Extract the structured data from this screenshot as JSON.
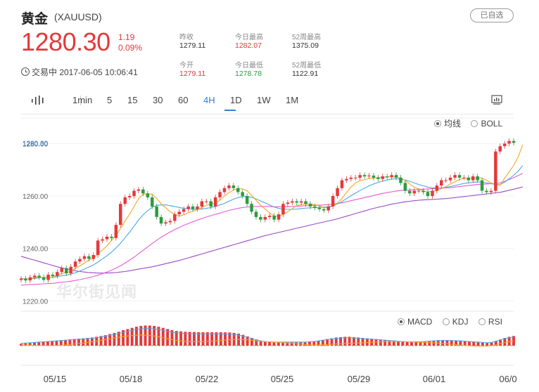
{
  "header": {
    "title": "黄金",
    "symbol": "(XAUUSD)",
    "watch_label": "已自选",
    "price": "1280.30",
    "change": "1.19",
    "change_pct": "0.09%",
    "trade_status": "交易中 2017-06-05 10:06:41"
  },
  "stats": {
    "prev_close_label": "昨收",
    "prev_close": "1279.11",
    "open_label": "今开",
    "open": "1279.11",
    "high_label": "今日最高",
    "high": "1282.07",
    "low_label": "今日最低",
    "low": "1278.78",
    "w52_high_label": "52周最高",
    "w52_high": "1375.09",
    "w52_low_label": "52周最低",
    "w52_low": "1122.91"
  },
  "toolbar": {
    "timeframes": [
      "1min",
      "5",
      "15",
      "30",
      "60",
      "4H",
      "1D",
      "1W",
      "1M"
    ],
    "active": "4H"
  },
  "overlay_options": {
    "ma_label": "均线",
    "boll_label": "BOLL"
  },
  "indicator_options": {
    "macd_label": "MACD",
    "kdj_label": "KDJ",
    "rsi_label": "RSI"
  },
  "watermark": "华尔街见闻",
  "colors": {
    "up": "#e4393c",
    "down": "#2c9c3f",
    "accent": "#2f7fd8",
    "ma_short": "#f5a623",
    "ma_mid": "#48a9e6",
    "ma_long": "#e85ad4",
    "ma_xlong": "#9b48c9"
  },
  "chart_data": {
    "type": "candlestick",
    "current_price_label": "1280.30",
    "current_price": 1280.3,
    "y_ticks": [
      "1220.00",
      "1240.00",
      "1260.00",
      "1280.00"
    ],
    "ylim": [
      1219,
      1286
    ],
    "x_ticks": [
      "05/15",
      "05/18",
      "05/22",
      "05/25",
      "05/29",
      "06/01",
      "06/0"
    ],
    "close": [
      1228.5,
      1227.8,
      1229,
      1229.6,
      1229,
      1228,
      1230,
      1229.5,
      1231,
      1232.5,
      1230.5,
      1233,
      1235,
      1236,
      1237,
      1236,
      1237.5,
      1243,
      1243.5,
      1244.5,
      1244,
      1249,
      1257,
      1259.5,
      1260,
      1262,
      1262.5,
      1261,
      1259.5,
      1256,
      1252,
      1249.5,
      1250,
      1250.5,
      1253,
      1254,
      1255,
      1256,
      1255,
      1256,
      1258,
      1258,
      1256,
      1259.5,
      1261.5,
      1263,
      1264,
      1263,
      1261.5,
      1260,
      1257,
      1254,
      1252,
      1251,
      1252,
      1252.5,
      1251,
      1253,
      1257,
      1257.5,
      1258,
      1257.5,
      1258,
      1257,
      1256,
      1255.5,
      1255,
      1254.5,
      1256,
      1260,
      1263,
      1266,
      1266.5,
      1267,
      1267,
      1268,
      1267.5,
      1267.8,
      1267,
      1266.5,
      1267.5,
      1267.2,
      1268,
      1267,
      1265,
      1262,
      1261,
      1262,
      1262,
      1261.5,
      1260,
      1262,
      1264,
      1266,
      1266,
      1267,
      1268,
      1267,
      1267,
      1266,
      1267.5,
      1266,
      1262,
      1261.5,
      1262,
      1277,
      1279,
      1280,
      1281,
      1280.3
    ],
    "ma_short": [
      1228.5,
      1228.3,
      1228.5,
      1228.9,
      1229.1,
      1228.8,
      1229,
      1229.1,
      1229.7,
      1230.5,
      1230.8,
      1231.3,
      1232.4,
      1233.3,
      1234.4,
      1235.6,
      1236.3,
      1237.9,
      1239.4,
      1241,
      1243,
      1245,
      1247.6,
      1250.5,
      1253,
      1256,
      1259,
      1260.7,
      1260.9,
      1260.7,
      1259,
      1257,
      1255.5,
      1254,
      1253,
      1252.4,
      1252.8,
      1253.6,
      1254.2,
      1254.8,
      1255.6,
      1256.5,
      1256.8,
      1257.3,
      1258.4,
      1260,
      1261.3,
      1262.3,
      1262.8,
      1262.7,
      1262,
      1260.3,
      1258.4,
      1256.5,
      1255,
      1253.6,
      1252.4,
      1252.2,
      1253,
      1254,
      1255.2,
      1256.3,
      1256.8,
      1256.9,
      1257,
      1256.7,
      1256.3,
      1255.6,
      1255.6,
      1256.2,
      1257.3,
      1259.1,
      1261.3,
      1263.4,
      1265,
      1265.9,
      1266.2,
      1266.7,
      1266.8,
      1267.1,
      1267.1,
      1267.2,
      1267.4,
      1267.2,
      1266.9,
      1265.9,
      1264.6,
      1263.4,
      1262.6,
      1262,
      1261.6,
      1261.8,
      1262,
      1262.8,
      1263.6,
      1264.6,
      1265.4,
      1266.2,
      1266.8,
      1266.8,
      1266.8,
      1266.9,
      1266.8,
      1266,
      1265,
      1264.3,
      1264.1,
      1266.9,
      1269.2,
      1271.7,
      1274.9,
      1279.5
    ],
    "ma_mid": [
      1228.5,
      1228.4,
      1228.4,
      1228.6,
      1228.8,
      1228.9,
      1229,
      1229,
      1229.3,
      1229.6,
      1229.8,
      1230.2,
      1230.7,
      1231.4,
      1232.1,
      1232.9,
      1233.7,
      1234.8,
      1236,
      1237.2,
      1238.6,
      1240.2,
      1242,
      1244.1,
      1246.2,
      1248.5,
      1250.9,
      1252.8,
      1254.4,
      1255.7,
      1256.4,
      1256.6,
      1256.6,
      1256.3,
      1256,
      1255.6,
      1255.3,
      1255.1,
      1254.9,
      1254.9,
      1255,
      1255.3,
      1255.6,
      1256,
      1256.6,
      1257.2,
      1258,
      1258.8,
      1259.4,
      1259.8,
      1259.8,
      1259.5,
      1258.9,
      1258.1,
      1257.4,
      1256.6,
      1255.8,
      1255.3,
      1255,
      1254.9,
      1254.9,
      1255,
      1255.2,
      1255.4,
      1255.5,
      1255.6,
      1255.7,
      1255.7,
      1255.9,
      1256.3,
      1257,
      1257.9,
      1259,
      1260.1,
      1261.1,
      1262.1,
      1263,
      1263.9,
      1264.6,
      1265.2,
      1265.7,
      1266.1,
      1266.5,
      1266.6,
      1266.5,
      1266.1,
      1265.6,
      1265,
      1264.4,
      1263.9,
      1263.4,
      1263.1,
      1263,
      1263.1,
      1263.3,
      1263.6,
      1264,
      1264.4,
      1264.8,
      1265,
      1265.2,
      1265.4,
      1265.3,
      1265,
      1264.7,
      1264.4,
      1264.3,
      1265.3,
      1266.6,
      1267.9,
      1269.5,
      1271.6
    ],
    "ma_long": [
      1226,
      1226.1,
      1226.2,
      1226.3,
      1226.4,
      1226.5,
      1226.6,
      1226.7,
      1226.9,
      1227.1,
      1227.3,
      1227.5,
      1227.8,
      1228.1,
      1228.5,
      1228.9,
      1229.3,
      1229.8,
      1230.4,
      1231,
      1231.7,
      1232.5,
      1233.4,
      1234.4,
      1235.5,
      1236.7,
      1238,
      1239.3,
      1240.6,
      1241.9,
      1243.1,
      1244.3,
      1245.3,
      1246.3,
      1247.2,
      1248,
      1248.8,
      1249.5,
      1250.2,
      1250.8,
      1251.4,
      1252,
      1252.5,
      1253,
      1253.5,
      1254,
      1254.5,
      1254.9,
      1255.3,
      1255.6,
      1255.8,
      1255.9,
      1256,
      1256,
      1256,
      1256,
      1255.9,
      1255.9,
      1255.9,
      1255.9,
      1256,
      1256.1,
      1256.2,
      1256.3,
      1256.4,
      1256.4,
      1256.5,
      1256.6,
      1256.7,
      1256.9,
      1257.1,
      1257.4,
      1257.8,
      1258.2,
      1258.6,
      1259,
      1259.4,
      1259.8,
      1260.2,
      1260.6,
      1261,
      1261.3,
      1261.6,
      1261.9,
      1262.1,
      1262.2,
      1262.3,
      1262.4,
      1262.5,
      1262.6,
      1262.7,
      1262.8,
      1262.9,
      1263,
      1263.1,
      1263.2,
      1263.4,
      1263.6,
      1263.8,
      1264,
      1264.2,
      1264.4,
      1264.5,
      1264.6,
      1264.7,
      1264.8,
      1265,
      1265.6,
      1266.3,
      1267,
      1267.8,
      1268.6
    ],
    "ma_xlong": [
      1237,
      1236.5,
      1236,
      1235.5,
      1235,
      1234.5,
      1234,
      1233.5,
      1233,
      1232.6,
      1232.2,
      1231.8,
      1231.5,
      1231.2,
      1231,
      1230.8,
      1230.7,
      1230.6,
      1230.6,
      1230.6,
      1230.7,
      1230.8,
      1231,
      1231.2,
      1231.5,
      1231.8,
      1232.1,
      1232.4,
      1232.7,
      1233,
      1233.4,
      1233.8,
      1234.2,
      1234.6,
      1235,
      1235.4,
      1235.9,
      1236.4,
      1236.9,
      1237.4,
      1237.9,
      1238.4,
      1238.9,
      1239.4,
      1239.9,
      1240.4,
      1240.9,
      1241.4,
      1241.9,
      1242.4,
      1242.9,
      1243.4,
      1243.9,
      1244.4,
      1244.9,
      1245.3,
      1245.7,
      1246.1,
      1246.5,
      1246.9,
      1247.3,
      1247.7,
      1248.1,
      1248.5,
      1248.9,
      1249.3,
      1249.7,
      1250.1,
      1250.5,
      1250.9,
      1251.3,
      1251.8,
      1252.3,
      1252.8,
      1253.3,
      1253.8,
      1254.3,
      1254.8,
      1255.3,
      1255.7,
      1256.1,
      1256.5,
      1256.9,
      1257.2,
      1257.5,
      1257.8,
      1258,
      1258.2,
      1258.4,
      1258.5,
      1258.6,
      1258.7,
      1258.8,
      1258.9,
      1259,
      1259.2,
      1259.4,
      1259.6,
      1259.8,
      1260,
      1260.2,
      1260.4,
      1260.6,
      1260.8,
      1261,
      1261.2,
      1261.4,
      1261.8,
      1262.2,
      1262.6,
      1263,
      1263.5
    ],
    "macd_hist": [
      0.25,
      0.3,
      0.35,
      0.4,
      0.45,
      0.5,
      0.55,
      0.6,
      0.65,
      0.7,
      0.75,
      0.8,
      0.85,
      0.9,
      0.95,
      1,
      1.05,
      1.15,
      1.25,
      1.35,
      1.5,
      1.65,
      1.8,
      2,
      2.15,
      2.3,
      2.45,
      2.55,
      2.6,
      2.6,
      2.55,
      2.45,
      2.3,
      2.15,
      2,
      1.9,
      1.85,
      1.8,
      1.78,
      1.76,
      1.75,
      1.74,
      1.73,
      1.73,
      1.73,
      1.73,
      1.72,
      1.7,
      1.65,
      1.55,
      1.4,
      1.2,
      1,
      0.8,
      0.65,
      0.55,
      0.5,
      0.45,
      0.45,
      0.45,
      0.45,
      0.45,
      0.45,
      0.45,
      0.45,
      0.5,
      0.55,
      0.65,
      0.75,
      0.85,
      0.95,
      1.05,
      1.1,
      1.15,
      1.15,
      1.1,
      1.05,
      1,
      0.95,
      0.9,
      0.85,
      0.8,
      0.75,
      0.7,
      0.65,
      0.6,
      0.55,
      0.5,
      0.5,
      0.5,
      0.5,
      0.55,
      0.6,
      0.65,
      0.7,
      0.72,
      0.72,
      0.7,
      0.68,
      0.65,
      0.6,
      0.55,
      0.5,
      0.45,
      0.4,
      0.35,
      0.4,
      0.6,
      0.8,
      1,
      1.15,
      1.25
    ],
    "grid": true
  }
}
